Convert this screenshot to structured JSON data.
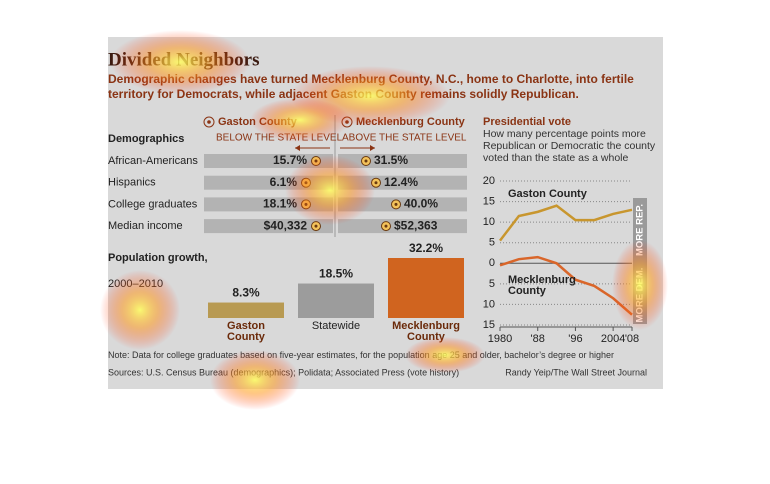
{
  "title": "Divided Neighbors",
  "subtitle": "Demographic changes have turned Mecklenburg County, N.C., home to Charlotte, into fertile territory for Democrats, while adjacent Gaston County remains solidly Republican.",
  "demographics": {
    "header": "Demographics",
    "gaston_header": "Gaston County",
    "mecklenburg_header": "Mecklenburg County",
    "gaston_sub": "BELOW THE STATE LEVEL",
    "mecklenburg_sub": "ABOVE THE STATE LEVEL",
    "rows": [
      [
        "African-Americans",
        "15.7%",
        "31.5%"
      ],
      [
        "Hispanics",
        "6.1%",
        "12.4%"
      ],
      [
        "College graduates",
        "18.1%",
        "40.0%"
      ],
      [
        "Median income",
        "$40,332",
        "$52,363"
      ]
    ]
  },
  "chart_data": [
    {
      "type": "bar",
      "title": "Population growth,",
      "subtitle": "2000–2010",
      "categories": [
        "Gaston County",
        "Statewide",
        "Mecklenburg County"
      ],
      "values": [
        8.3,
        18.5,
        32.2
      ],
      "value_labels": [
        "8.3%",
        "18.5%",
        "32.2%"
      ],
      "colors": [
        "#b89a52",
        "#9c9c9c",
        "#d0641f"
      ]
    },
    {
      "type": "line",
      "title": "Presidential vote",
      "subtitle": "How many percentage points more Republican or Democratic the county voted than the state as a whole",
      "x": [
        1980,
        1984,
        1988,
        1992,
        1996,
        2000,
        2004,
        2008
      ],
      "xticks": [
        1980,
        {
          "value": 1988,
          "label": "'88"
        },
        {
          "value": 1996,
          "label": "'96"
        },
        2004,
        {
          "value": 2008,
          "label": "'08"
        }
      ],
      "xlim": [
        1980,
        2008
      ],
      "ylim": [
        -15,
        20
      ],
      "yticks": [
        20,
        15,
        10,
        5,
        0,
        {
          "value": -5,
          "label": "5"
        },
        {
          "value": -10,
          "label": "10"
        },
        {
          "value": -15,
          "label": "15"
        }
      ],
      "grid": true,
      "annotations": [
        "MORE REP.",
        "MORE DEM."
      ],
      "series": [
        {
          "name": "Gaston County",
          "color": "#c8962e",
          "values": [
            5.5,
            11.5,
            12.5,
            14,
            10.5,
            10.5,
            12,
            13
          ]
        },
        {
          "name": "Mecklenburg County",
          "color": "#d9662a",
          "values": [
            -0.5,
            1,
            1.5,
            0,
            -4,
            -5.5,
            -8.5,
            -12.5
          ]
        }
      ]
    }
  ],
  "note": "Note: Data for college graduates based on five-year estimates, for the population age 25 and older, bachelor’s degree or higher",
  "sources": "Sources: U.S. Census Bureau (demographics); Polidata; Associated Press (vote history)",
  "credit": "Randy Yeip/The Wall Street Journal"
}
